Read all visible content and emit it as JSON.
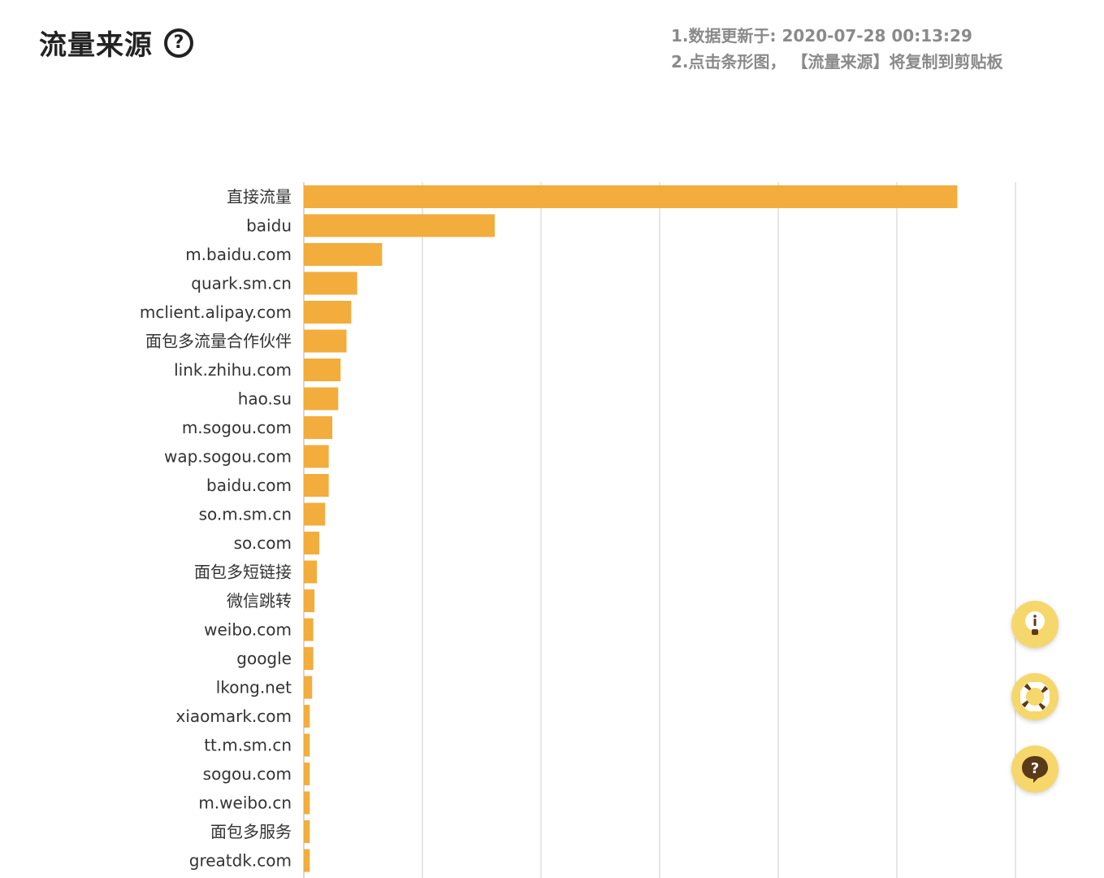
{
  "header": {
    "title": "流量来源",
    "help_glyph": "?",
    "note_1": "1.数据更新于: 2020-07-28 00:13:29",
    "note_2": "2.点击条形图， 【流量来源】将复制到剪贴板"
  },
  "chart_data": {
    "type": "bar",
    "orientation": "horizontal",
    "title": "",
    "xlabel": "",
    "ylabel": "",
    "xlim": [
      0,
      6
    ],
    "grid": true,
    "categories": [
      "直接流量",
      "baidu",
      "m.baidu.com",
      "quark.sm.cn",
      "mclient.alipay.com",
      "面包多流量合作伙伴",
      "link.zhihu.com",
      "hao.su",
      "m.sogou.com",
      "wap.sogou.com",
      "baidu.com",
      "so.m.sm.cn",
      "so.com",
      "面包多短链接",
      "微信跳转",
      "weibo.com",
      "google",
      "lkong.net",
      "xiaomark.com",
      "tt.m.sm.cn",
      "sogou.com",
      "m.weibo.cn",
      "面包多服务",
      "greatdk.com"
    ],
    "values": [
      5.51,
      1.61,
      0.66,
      0.45,
      0.4,
      0.36,
      0.31,
      0.29,
      0.24,
      0.21,
      0.21,
      0.18,
      0.13,
      0.11,
      0.09,
      0.08,
      0.08,
      0.07,
      0.05,
      0.05,
      0.05,
      0.05,
      0.05,
      0.05
    ],
    "bar_color": "#f2ad3d",
    "grid_color": "#cccccc"
  },
  "floating_buttons": {
    "colors": {
      "fill": "#f6d76b",
      "glyph": "#5b3a1a"
    },
    "items": [
      {
        "name": "lightbulb-icon"
      },
      {
        "name": "lifebuoy-icon"
      },
      {
        "name": "help-chat-icon",
        "glyph": "?"
      }
    ]
  }
}
